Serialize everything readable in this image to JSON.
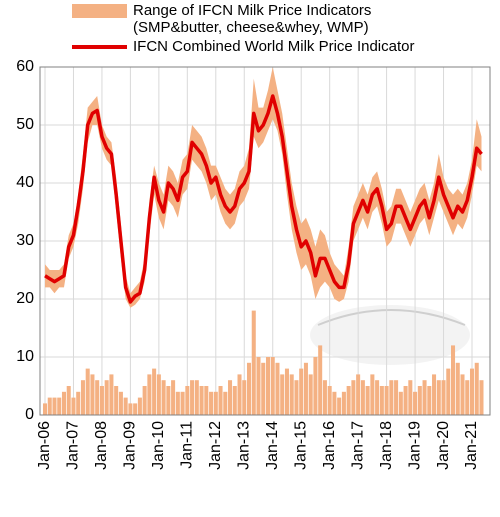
{
  "chart_data": {
    "type": "line",
    "x": [
      "Jan-06",
      "Mar-06",
      "May-06",
      "Jul-06",
      "Sep-06",
      "Nov-06",
      "Jan-07",
      "Mar-07",
      "May-07",
      "Jul-07",
      "Sep-07",
      "Nov-07",
      "Jan-08",
      "Mar-08",
      "May-08",
      "Jul-08",
      "Sep-08",
      "Nov-08",
      "Jan-09",
      "Mar-09",
      "May-09",
      "Jul-09",
      "Sep-09",
      "Nov-09",
      "Jan-10",
      "Mar-10",
      "May-10",
      "Jul-10",
      "Sep-10",
      "Nov-10",
      "Jan-11",
      "Mar-11",
      "May-11",
      "Jul-11",
      "Sep-11",
      "Nov-11",
      "Jan-12",
      "Mar-12",
      "May-12",
      "Jul-12",
      "Sep-12",
      "Nov-12",
      "Jan-13",
      "Mar-13",
      "May-13",
      "Jul-13",
      "Sep-13",
      "Nov-13",
      "Jan-14",
      "Mar-14",
      "May-14",
      "Jul-14",
      "Sep-14",
      "Nov-14",
      "Jan-15",
      "Mar-15",
      "May-15",
      "Jul-15",
      "Sep-15",
      "Nov-15",
      "Jan-16",
      "Mar-16",
      "May-16",
      "Jul-16",
      "Sep-16",
      "Nov-16",
      "Jan-17",
      "Mar-17",
      "May-17",
      "Jul-17",
      "Sep-17",
      "Nov-17",
      "Jan-18",
      "Mar-18",
      "May-18",
      "Jul-18",
      "Sep-18",
      "Nov-18",
      "Jan-19",
      "Mar-19",
      "May-19",
      "Jul-19",
      "Sep-19",
      "Nov-19",
      "Jan-20",
      "Mar-20",
      "May-20",
      "Jul-20",
      "Sep-20",
      "Nov-20",
      "Jan-21",
      "Mar-21",
      "May-21"
    ],
    "xticks": [
      "Jan-06",
      "Jan-07",
      "Jan-08",
      "Jan-09",
      "Jan-10",
      "Jan-11",
      "Jan-12",
      "Jan-13",
      "Jan-14",
      "Jan-15",
      "Jan-16",
      "Jan-17",
      "Jan-18",
      "Jan-19",
      "Jan-20",
      "Jan-21"
    ],
    "range": {
      "name": "Range of IFCN Milk Price Indicators (SMP&butter, cheese&whey, WMP)",
      "color": "#f4b183",
      "low": [
        22,
        22,
        21,
        22,
        22,
        27,
        29,
        33,
        39,
        47,
        50,
        50,
        46,
        44,
        43,
        35,
        27,
        20,
        18.5,
        19,
        20,
        23,
        31,
        38,
        34,
        32,
        37,
        36,
        34,
        38,
        39,
        44,
        43,
        42,
        40,
        37,
        38,
        35,
        33,
        32,
        33,
        36,
        37,
        39,
        48,
        46,
        47,
        49,
        51,
        49,
        45,
        38,
        32,
        28,
        25,
        26,
        24,
        20,
        22,
        23,
        22,
        20,
        19.5,
        20,
        23,
        30,
        32,
        34,
        32,
        35,
        36,
        33,
        29,
        30,
        33,
        33,
        31,
        29,
        31,
        33,
        34,
        31,
        34,
        37,
        35,
        33,
        31,
        33,
        32,
        34,
        38,
        43,
        42
      ],
      "high": [
        26,
        25,
        25,
        25,
        26,
        31,
        33,
        38,
        45,
        53,
        54,
        55,
        50,
        48,
        47,
        41,
        33,
        24,
        21,
        22,
        23,
        27,
        37,
        43,
        40,
        38,
        43,
        42,
        40,
        44,
        45,
        50,
        49,
        48,
        46,
        43,
        43,
        41,
        39,
        38,
        39,
        42,
        43,
        46,
        58,
        53,
        53,
        56,
        60,
        56,
        52,
        46,
        40,
        36,
        33,
        34,
        32,
        29,
        32,
        31,
        28,
        26,
        25,
        24,
        29,
        36,
        38,
        40,
        38,
        41,
        42,
        39,
        35,
        36,
        39,
        39,
        37,
        35,
        37,
        39,
        40,
        37,
        40,
        45,
        41,
        39,
        38,
        39,
        38,
        40,
        44,
        51,
        48
      ]
    },
    "series": [
      {
        "name": "IFCN Combined World Milk Price Indicator",
        "color": "#e00000",
        "values": [
          24,
          23.5,
          23,
          23.5,
          24,
          29,
          31,
          36,
          42,
          50,
          52,
          52.5,
          48,
          46,
          45,
          38,
          30,
          22,
          19.5,
          20.5,
          21,
          25,
          34,
          41,
          37,
          35,
          40,
          39,
          37,
          41,
          42,
          47,
          46,
          45,
          43,
          40,
          41,
          38,
          36,
          35,
          36,
          39,
          40,
          42,
          52,
          49,
          50,
          52,
          55,
          52,
          48,
          42,
          36,
          32,
          29,
          30,
          28,
          24,
          27,
          27,
          25,
          23,
          22,
          22,
          26,
          33,
          35,
          37,
          35,
          38,
          39,
          36,
          32,
          33,
          36,
          36,
          34,
          32,
          34,
          36,
          37,
          34,
          37,
          41,
          38,
          36,
          34,
          36,
          35,
          37,
          41,
          46,
          45
        ]
      }
    ],
    "bars": {
      "color": "#f4b183",
      "values": [
        2,
        3,
        3,
        3,
        4,
        5,
        3,
        4,
        6,
        8,
        7,
        6,
        5,
        6,
        7,
        5,
        4,
        3,
        2,
        2,
        3,
        5,
        7,
        8,
        7,
        6,
        5,
        6,
        4,
        4,
        5,
        6,
        6,
        5,
        5,
        4,
        4,
        5,
        4,
        6,
        5,
        7,
        6,
        9,
        18,
        10,
        9,
        10,
        10,
        9,
        7,
        8,
        7,
        6,
        8,
        9,
        7,
        10,
        12,
        6,
        5,
        4,
        3,
        4,
        5,
        6,
        7,
        6,
        5,
        7,
        6,
        5,
        5,
        6,
        6,
        4,
        5,
        6,
        4,
        5,
        6,
        5,
        7,
        6,
        6,
        8,
        12,
        9,
        7,
        6,
        8,
        9,
        6
      ]
    },
    "ylim": [
      0,
      60
    ],
    "yticks": [
      0,
      10,
      20,
      30,
      40,
      50,
      60
    ],
    "grid": true
  }
}
